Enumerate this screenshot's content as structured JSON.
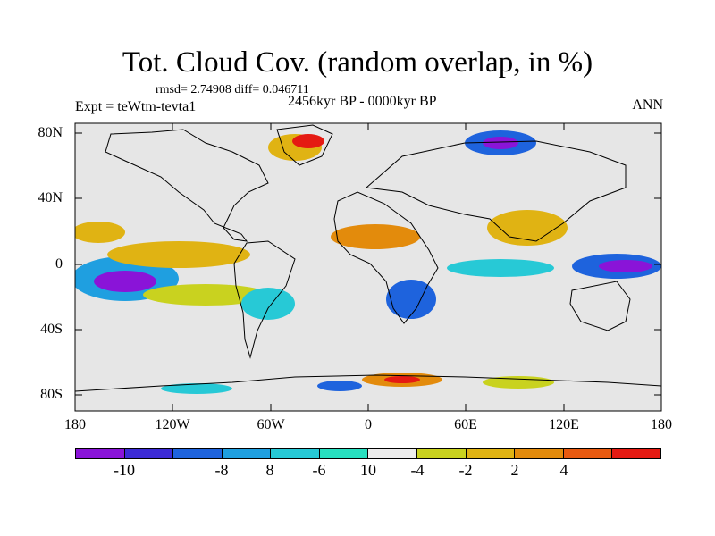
{
  "title": "Tot. Cloud Cov. (random overlap, in %)",
  "stats": "rmsd= 2.74908 diff= 0.046711",
  "experiment": "Expt = teWtm-tevta1",
  "period": "2456kyr BP - 0000kyr BP",
  "season": "ANN",
  "lat_labels": [
    "80N",
    "40N",
    "0",
    "40S",
    "80S"
  ],
  "lon_labels": [
    "180",
    "120W",
    "60W",
    "0",
    "60E",
    "120E",
    "180"
  ],
  "colorbar": {
    "colors": [
      "#8a14d8",
      "#3c2bd6",
      "#1e63dd",
      "#1f9fe0",
      "#27c9d6",
      "#28e0c0",
      "#ececec",
      "#c9d21f",
      "#e0b313",
      "#e38b0c",
      "#e85a10",
      "#e51a12"
    ],
    "labels": [
      "-10",
      "-8",
      "-6",
      "-4",
      "-2",
      "2",
      "4",
      "8",
      "10"
    ]
  },
  "map": {
    "ocean_color": "#e6e6e6",
    "land_outline_color": "#000000"
  }
}
